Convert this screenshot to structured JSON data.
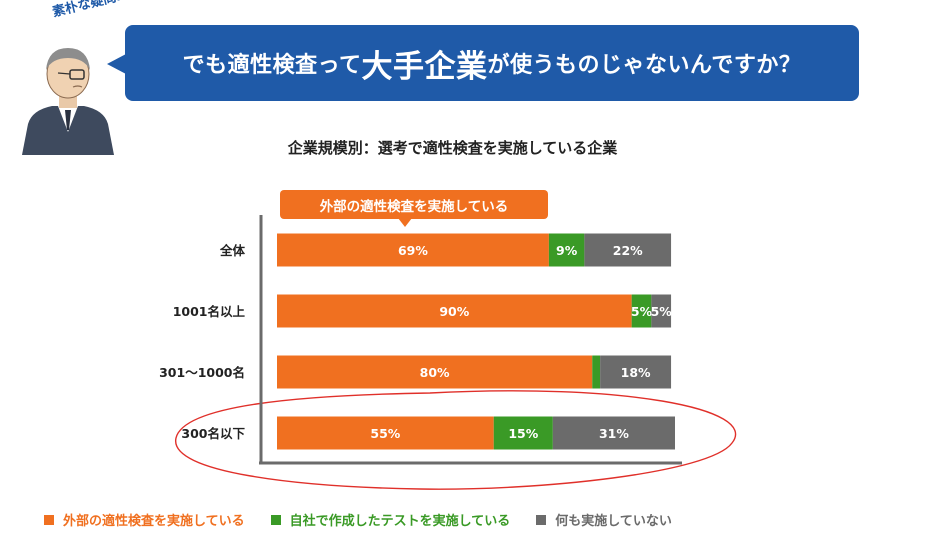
{
  "header": {
    "tag_text": "素朴な疑問…",
    "question_before": "でも適性検査って",
    "question_emphasis": "大手企業",
    "question_after": "が使うものじゃないんですか？"
  },
  "colors": {
    "brand_blue": "#1f5aa8",
    "external": "#f07020",
    "inhouse": "#3a9a26",
    "none": "#6b6b6b"
  },
  "chart_data": {
    "type": "bar",
    "orientation": "horizontal",
    "stacked": true,
    "title": "企業規模別：選考で適性検査を実施している企業",
    "annotation": "外部の適性検査を実施している",
    "categories": [
      "全体",
      "1001名以上",
      "301～1000名",
      "300名以下"
    ],
    "series": [
      {
        "name": "外部の適性検査を実施している",
        "values": [
          69,
          90,
          80,
          55
        ],
        "labels": [
          "69%",
          "90%",
          "80%",
          "55%"
        ]
      },
      {
        "name": "自社で作成したテストを実施している",
        "values": [
          9,
          5,
          2,
          15
        ],
        "labels": [
          "9%",
          "5%",
          "",
          "15%"
        ]
      },
      {
        "name": "何も実施していない",
        "values": [
          22,
          5,
          18,
          31
        ],
        "labels": [
          "22%",
          "5%",
          "18%",
          "31%"
        ]
      }
    ],
    "xlim": [
      0,
      101
    ],
    "highlighted_category": "300名以下",
    "legend_position": "bottom",
    "grid": false
  }
}
